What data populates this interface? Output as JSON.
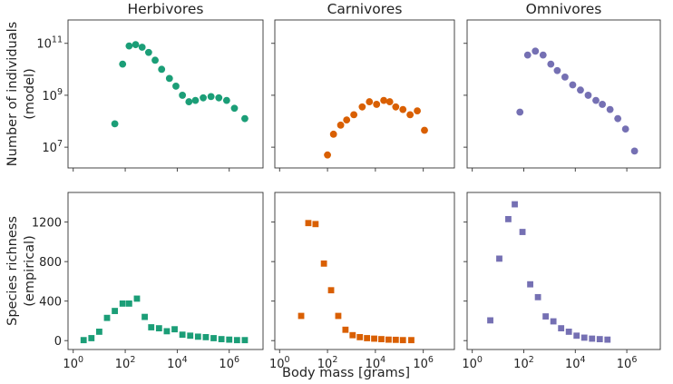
{
  "chart_data": {
    "type": "scatter",
    "titles": [
      "Herbivores",
      "Carnivores",
      "Omnivores"
    ],
    "xlabel": "Body mass [grams]",
    "ylabel_top": [
      "Number of individuals",
      "(model)"
    ],
    "ylabel_bottom": [
      "Species richness",
      "(empirical)"
    ],
    "x_scale": "log10",
    "xlim_log10": [
      -0.2,
      7.3
    ],
    "x_ticks": [
      {
        "exp": 0,
        "base": "10",
        "sup": "0"
      },
      {
        "exp": 2,
        "base": "10",
        "sup": "2"
      },
      {
        "exp": 4,
        "base": "10",
        "sup": "4"
      },
      {
        "exp": 6,
        "base": "10",
        "sup": "6"
      }
    ],
    "top_row": {
      "y_scale": "log10",
      "ylim_log10": [
        6.2,
        11.9
      ],
      "y_ticks": [
        {
          "exp": 7,
          "base": "10",
          "sup": "7"
        },
        {
          "exp": 9,
          "base": "10",
          "sup": "9"
        },
        {
          "exp": 11,
          "base": "10",
          "sup": "11"
        }
      ],
      "series": [
        {
          "name": "Herbivores",
          "color": "#1b9e77",
          "marker": "circle",
          "x_log10": [
            1.6,
            1.9,
            2.15,
            2.4,
            2.65,
            2.9,
            3.15,
            3.4,
            3.7,
            3.95,
            4.2,
            4.45,
            4.7,
            5.0,
            5.3,
            5.6,
            5.9,
            6.2,
            6.6
          ],
          "y_log10": [
            7.9,
            10.2,
            10.9,
            10.95,
            10.85,
            10.65,
            10.35,
            10.0,
            9.65,
            9.35,
            9.0,
            8.75,
            8.8,
            8.9,
            8.95,
            8.9,
            8.8,
            8.5,
            8.1
          ]
        },
        {
          "name": "Carnivores",
          "color": "#d95f02",
          "marker": "circle",
          "x_log10": [
            2.0,
            2.25,
            2.55,
            2.8,
            3.1,
            3.45,
            3.75,
            4.05,
            4.35,
            4.6,
            4.85,
            5.15,
            5.45,
            5.75,
            6.05
          ],
          "y_log10": [
            6.7,
            7.5,
            7.85,
            8.05,
            8.25,
            8.55,
            8.75,
            8.65,
            8.8,
            8.75,
            8.55,
            8.45,
            8.25,
            8.4,
            7.65
          ]
        }
      ]
    },
    "top_row_omnivores": {
      "series": [
        {
          "name": "Omnivores",
          "color": "#7570b3",
          "marker": "circle",
          "x_log10": [
            1.85,
            2.15,
            2.45,
            2.75,
            3.05,
            3.3,
            3.6,
            3.9,
            4.2,
            4.5,
            4.8,
            5.05,
            5.35,
            5.65,
            5.95,
            6.3
          ],
          "y_log10": [
            8.35,
            10.55,
            10.7,
            10.55,
            10.2,
            9.95,
            9.7,
            9.4,
            9.2,
            9.0,
            8.8,
            8.65,
            8.45,
            8.1,
            7.7,
            6.85
          ]
        }
      ]
    },
    "bottom_row": {
      "y_scale": "linear",
      "ylim": [
        -90,
        1500
      ],
      "y_ticks": [
        0,
        400,
        800,
        1200
      ],
      "series": [
        {
          "name": "Herbivores",
          "color": "#1b9e77",
          "marker": "square",
          "x_log10": [
            0.4,
            0.7,
            1.0,
            1.3,
            1.6,
            1.9,
            2.15,
            2.45,
            2.75,
            3.0,
            3.3,
            3.6,
            3.9,
            4.2,
            4.5,
            4.8,
            5.1,
            5.4,
            5.7,
            6.0,
            6.3,
            6.6
          ],
          "y": [
            5,
            25,
            90,
            230,
            300,
            375,
            375,
            425,
            240,
            135,
            125,
            95,
            115,
            60,
            50,
            40,
            35,
            25,
            15,
            10,
            5,
            5
          ]
        },
        {
          "name": "Carnivores",
          "color": "#d95f02",
          "marker": "square",
          "x_log10": [
            0.9,
            1.2,
            1.5,
            1.85,
            2.15,
            2.45,
            2.75,
            3.05,
            3.35,
            3.65,
            3.95,
            4.25,
            4.55,
            4.85,
            5.15,
            5.5
          ],
          "y": [
            250,
            1190,
            1180,
            780,
            510,
            250,
            110,
            55,
            35,
            25,
            20,
            15,
            10,
            8,
            5,
            5
          ]
        },
        {
          "name": "Omnivores",
          "color": "#7570b3",
          "marker": "square",
          "x_log10": [
            0.7,
            1.05,
            1.4,
            1.65,
            1.95,
            2.25,
            2.55,
            2.85,
            3.15,
            3.45,
            3.75,
            4.05,
            4.35,
            4.65,
            4.95,
            5.25
          ],
          "y": [
            205,
            830,
            1230,
            1380,
            1100,
            570,
            440,
            245,
            195,
            125,
            90,
            50,
            30,
            20,
            15,
            10
          ]
        }
      ]
    },
    "grid": false,
    "legend": "none"
  }
}
